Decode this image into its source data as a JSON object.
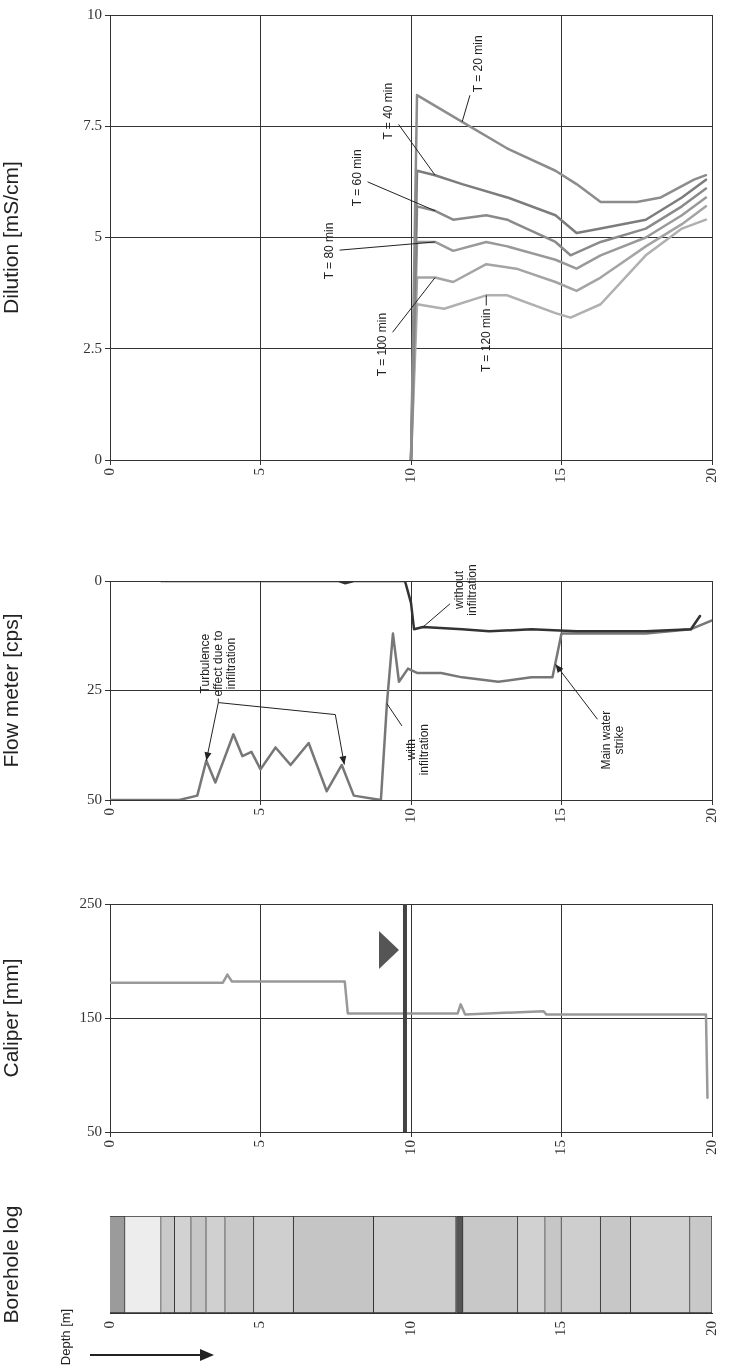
{
  "chart_data": [
    {
      "type": "line",
      "ylabel": "Dilution [mS/cm]",
      "xlim": [
        0,
        20
      ],
      "xticks": [
        0,
        5,
        10,
        15,
        20
      ],
      "ylim": [
        0,
        10
      ],
      "yticks": [
        0,
        2.5,
        5,
        7.5,
        10
      ],
      "grid": true,
      "series": [
        {
          "name": "T = 20 min",
          "color": "#8c8c8c",
          "x": [
            10,
            10.2,
            11.7,
            13.2,
            14.8,
            15.5,
            16.3,
            17.5,
            18.3,
            19.4,
            19.8
          ],
          "values": [
            0,
            8.2,
            7.6,
            7.0,
            6.5,
            6.2,
            5.8,
            5.8,
            5.9,
            6.3,
            6.4
          ]
        },
        {
          "name": "T = 40 min",
          "color": "#7c7c7c",
          "x": [
            10,
            10.2,
            10.8,
            11.7,
            13.2,
            14.8,
            15.5,
            16.3,
            17.8,
            19.0,
            19.8
          ],
          "values": [
            0,
            6.5,
            6.4,
            6.2,
            5.9,
            5.5,
            5.1,
            5.2,
            5.4,
            5.9,
            6.3
          ]
        },
        {
          "name": "T = 60 min",
          "color": "#8a8a8a",
          "x": [
            10,
            10.2,
            10.8,
            11.4,
            12.5,
            13.2,
            14.8,
            15.3,
            16.3,
            17.8,
            19.0,
            19.8
          ],
          "values": [
            0,
            5.7,
            5.6,
            5.4,
            5.5,
            5.4,
            4.9,
            4.6,
            4.9,
            5.2,
            5.7,
            6.1
          ]
        },
        {
          "name": "T = 80 min",
          "color": "#999999",
          "x": [
            10,
            10.2,
            10.8,
            11.4,
            12.5,
            13.2,
            14.8,
            15.5,
            16.3,
            17.8,
            19.0,
            19.8
          ],
          "values": [
            0,
            4.9,
            4.9,
            4.7,
            4.9,
            4.8,
            4.5,
            4.3,
            4.6,
            5.0,
            5.5,
            5.9
          ]
        },
        {
          "name": "T = 100 min",
          "color": "#a4a4a4",
          "x": [
            10,
            10.2,
            10.8,
            11.4,
            12.5,
            13.5,
            14.8,
            15.5,
            16.3,
            17.8,
            19.0,
            19.8
          ],
          "values": [
            0,
            4.1,
            4.1,
            4.0,
            4.4,
            4.3,
            4.0,
            3.8,
            4.1,
            4.8,
            5.3,
            5.7
          ]
        },
        {
          "name": "T = 120 min",
          "color": "#b0b0b0",
          "x": [
            10,
            10.2,
            11.1,
            12.5,
            13.2,
            14.8,
            15.3,
            16.3,
            17.8,
            19.0,
            19.8
          ],
          "values": [
            0,
            3.5,
            3.4,
            3.7,
            3.7,
            3.3,
            3.2,
            3.5,
            4.6,
            5.2,
            5.4
          ]
        }
      ]
    },
    {
      "type": "line",
      "ylabel": "Flow meter [cps]",
      "xlim": [
        0,
        20
      ],
      "xticks": [
        0,
        5,
        10,
        15,
        20
      ],
      "ylim": [
        50,
        0
      ],
      "yticks": [
        0,
        25,
        50
      ],
      "grid": true,
      "series": [
        {
          "name": "without infiltration",
          "color": "#333333",
          "x": [
            1.7,
            7.6,
            7.8,
            8.1,
            9.8,
            10.0,
            10.1,
            10.4,
            11.7,
            12.6,
            14.0,
            15.5,
            17.8,
            19.3,
            19.6
          ],
          "values": [
            0,
            0,
            0.5,
            0,
            0,
            5,
            11,
            10.5,
            11,
            11.5,
            11,
            11.5,
            11.5,
            11,
            8
          ]
        },
        {
          "name": "with infiltration",
          "color": "#777777",
          "x": [
            0,
            2.3,
            2.9,
            3.2,
            3.5,
            4.1,
            4.4,
            4.7,
            5.0,
            5.5,
            6.0,
            6.6,
            7.2,
            7.7,
            8.1,
            9.0,
            9.2,
            9.4,
            9.6,
            9.9,
            10.2,
            11.0,
            11.7,
            12.9,
            14.0,
            14.7,
            15.0,
            15.5,
            17.8,
            19.3,
            20
          ],
          "values": [
            50,
            50,
            49,
            41,
            46,
            35,
            40,
            39,
            43,
            38,
            42,
            37,
            48,
            42,
            49,
            50,
            28,
            12,
            23,
            20,
            21,
            21,
            22,
            23,
            22,
            22,
            12,
            12,
            12,
            11,
            9
          ]
        }
      ],
      "annotations": [
        {
          "text": "Turbulence effect due to infiltration",
          "x": 3.2,
          "y": 41
        },
        {
          "text": "Main water strike",
          "x": 14.8,
          "y": 19
        }
      ]
    },
    {
      "type": "line",
      "ylabel": "Caliper [mm]",
      "xlim": [
        0,
        20
      ],
      "xticks": [
        0,
        5,
        10,
        15,
        20
      ],
      "ylim": [
        50,
        250
      ],
      "yticks": [
        50,
        150,
        250
      ],
      "grid": true,
      "series": [
        {
          "color": "#999999",
          "x": [
            0,
            3.75,
            3.9,
            4.05,
            7.8,
            7.9,
            9.75,
            11.55,
            11.65,
            11.8,
            14.4,
            14.5,
            19.8,
            19.85
          ],
          "values": [
            181,
            181,
            188,
            182,
            182,
            154,
            154,
            154,
            162,
            153,
            156,
            153,
            153,
            80
          ]
        }
      ],
      "ref_lines": [
        {
          "axis": "x",
          "value": 9.8,
          "color": "#444444"
        }
      ]
    },
    {
      "type": "bar",
      "orientation": "horizontal",
      "stacked": true,
      "ylabel": "Borehole log",
      "annotations": [
        "Depth [m]"
      ],
      "categories": [
        null
      ],
      "xlim": [
        0,
        20
      ],
      "xticks": [
        0,
        5,
        10,
        15,
        20
      ],
      "series": [
        {
          "color": "#9b9b9b",
          "values": [
            0.5
          ]
        },
        {
          "color": "#ededed",
          "values": [
            1.2
          ]
        },
        {
          "color": "#c9c9c9",
          "values": [
            0.45
          ]
        },
        {
          "color": "#d2d2d2",
          "values": [
            0.55
          ]
        },
        {
          "color": "#c6c6c6",
          "values": [
            0.5
          ]
        },
        {
          "color": "#d0d0d0",
          "values": [
            0.63
          ]
        },
        {
          "color": "#c9c9c9",
          "values": [
            0.95
          ]
        },
        {
          "color": "#cfcfcf",
          "values": [
            1.32
          ]
        },
        {
          "color": "#c5c5c5",
          "values": [
            2.66
          ]
        },
        {
          "color": "#cdcdcd",
          "values": [
            2.74
          ]
        },
        {
          "color": "#555555",
          "values": [
            0.23
          ]
        },
        {
          "color": "#c8c8c8",
          "values": [
            1.82
          ]
        },
        {
          "color": "#d1d1d1",
          "values": [
            0.91
          ]
        },
        {
          "color": "#c6c6c6",
          "values": [
            0.54
          ]
        },
        {
          "color": "#cecece",
          "values": [
            1.3
          ]
        },
        {
          "color": "#c7c7c7",
          "values": [
            1.0
          ]
        },
        {
          "color": "#d0d0d0",
          "values": [
            1.97
          ]
        },
        {
          "color": "#c8c8c8",
          "values": [
            0.73
          ]
        }
      ]
    }
  ]
}
